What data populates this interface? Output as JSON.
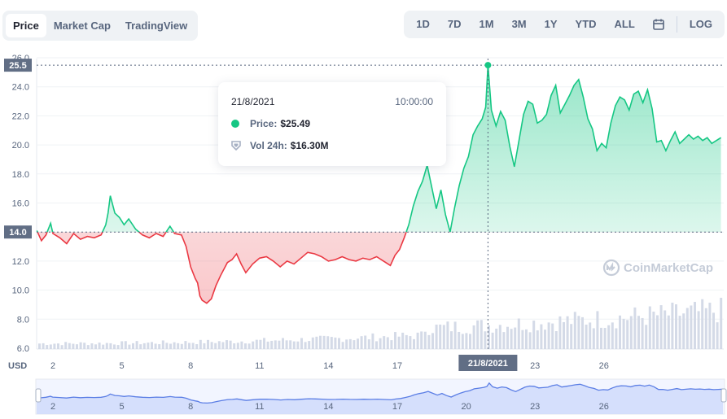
{
  "tabs": [
    {
      "label": "Price",
      "active": true
    },
    {
      "label": "Market Cap",
      "active": false
    },
    {
      "label": "TradingView",
      "active": false
    }
  ],
  "ranges": [
    "1D",
    "7D",
    "1M",
    "3M",
    "1Y",
    "YTD",
    "ALL"
  ],
  "log_label": "LOG",
  "tooltip": {
    "date": "21/8/2021",
    "time": "10:00:00",
    "price_label": "Price:",
    "price_value": "$25.49",
    "vol_label": "Vol 24h:",
    "vol_value": "$16.30M"
  },
  "watermark": "CoinMarketCap",
  "colors": {
    "up": "#16c784",
    "down": "#ea3943",
    "volume": "#cfd6e4",
    "navigator": "#5b7ee5"
  },
  "chart_data": {
    "type": "area",
    "currency_label": "USD",
    "y_ticks": [
      "26.0",
      "24.0",
      "22.0",
      "20.0",
      "18.0",
      "16.0",
      "14.0",
      "12.0",
      "10.0",
      "8.0",
      "6.0"
    ],
    "ylim": [
      6,
      26
    ],
    "x_ticks": [
      "2",
      "5",
      "8",
      "11",
      "14",
      "17",
      "20",
      "23",
      "26"
    ],
    "hover_x_label": "21/8/2021",
    "hover_y_label": "25.5",
    "baseline_label": "14.0",
    "baseline": 14.0,
    "x_unit": "day of August 2021",
    "x_range": [
      1.3,
      31.1
    ],
    "price": [
      [
        1.3,
        14.1
      ],
      [
        1.5,
        13.4
      ],
      [
        1.7,
        13.8
      ],
      [
        1.9,
        14.6
      ],
      [
        2.0,
        13.9
      ],
      [
        2.3,
        13.6
      ],
      [
        2.6,
        13.2
      ],
      [
        2.9,
        13.9
      ],
      [
        3.2,
        13.5
      ],
      [
        3.5,
        13.7
      ],
      [
        3.8,
        13.6
      ],
      [
        4.1,
        13.8
      ],
      [
        4.3,
        14.5
      ],
      [
        4.4,
        15.3
      ],
      [
        4.5,
        16.5
      ],
      [
        4.7,
        15.3
      ],
      [
        4.9,
        15.0
      ],
      [
        5.1,
        14.5
      ],
      [
        5.3,
        14.9
      ],
      [
        5.6,
        14.2
      ],
      [
        5.9,
        13.8
      ],
      [
        6.2,
        13.6
      ],
      [
        6.5,
        13.9
      ],
      [
        6.8,
        13.7
      ],
      [
        7.1,
        14.4
      ],
      [
        7.3,
        13.9
      ],
      [
        7.6,
        13.8
      ],
      [
        7.8,
        13.0
      ],
      [
        8.0,
        11.6
      ],
      [
        8.2,
        10.8
      ],
      [
        8.3,
        10.5
      ],
      [
        8.4,
        9.6
      ],
      [
        8.5,
        9.3
      ],
      [
        8.7,
        9.1
      ],
      [
        8.9,
        9.4
      ],
      [
        9.1,
        10.3
      ],
      [
        9.3,
        11.0
      ],
      [
        9.6,
        11.9
      ],
      [
        9.8,
        12.1
      ],
      [
        10.0,
        12.5
      ],
      [
        10.2,
        11.8
      ],
      [
        10.4,
        11.2
      ],
      [
        10.7,
        11.8
      ],
      [
        11.0,
        12.2
      ],
      [
        11.3,
        12.3
      ],
      [
        11.6,
        12.0
      ],
      [
        11.9,
        11.6
      ],
      [
        12.2,
        12.0
      ],
      [
        12.5,
        11.8
      ],
      [
        12.8,
        12.2
      ],
      [
        13.1,
        12.6
      ],
      [
        13.4,
        12.5
      ],
      [
        13.7,
        12.3
      ],
      [
        14.0,
        12.0
      ],
      [
        14.3,
        12.1
      ],
      [
        14.6,
        12.3
      ],
      [
        14.9,
        12.1
      ],
      [
        15.2,
        12.0
      ],
      [
        15.5,
        12.2
      ],
      [
        15.8,
        12.1
      ],
      [
        16.1,
        12.3
      ],
      [
        16.4,
        12.0
      ],
      [
        16.7,
        11.7
      ],
      [
        16.9,
        12.4
      ],
      [
        17.1,
        12.8
      ],
      [
        17.3,
        13.6
      ],
      [
        17.5,
        14.5
      ],
      [
        17.7,
        15.8
      ],
      [
        17.9,
        16.8
      ],
      [
        18.1,
        17.5
      ],
      [
        18.3,
        18.6
      ],
      [
        18.5,
        17.1
      ],
      [
        18.7,
        15.6
      ],
      [
        18.9,
        16.9
      ],
      [
        19.1,
        15.2
      ],
      [
        19.3,
        14.0
      ],
      [
        19.5,
        15.7
      ],
      [
        19.7,
        17.2
      ],
      [
        19.9,
        18.4
      ],
      [
        20.1,
        19.2
      ],
      [
        20.3,
        20.7
      ],
      [
        20.5,
        21.3
      ],
      [
        20.7,
        21.8
      ],
      [
        20.85,
        22.6
      ],
      [
        20.95,
        25.49
      ],
      [
        21.1,
        22.4
      ],
      [
        21.3,
        21.3
      ],
      [
        21.5,
        22.3
      ],
      [
        21.7,
        21.7
      ],
      [
        21.9,
        19.9
      ],
      [
        22.1,
        18.5
      ],
      [
        22.3,
        20.3
      ],
      [
        22.5,
        22.1
      ],
      [
        22.7,
        23.0
      ],
      [
        22.9,
        22.8
      ],
      [
        23.1,
        21.5
      ],
      [
        23.3,
        21.7
      ],
      [
        23.5,
        22.1
      ],
      [
        23.7,
        23.4
      ],
      [
        23.9,
        24.1
      ],
      [
        24.1,
        22.2
      ],
      [
        24.3,
        22.8
      ],
      [
        24.5,
        23.4
      ],
      [
        24.7,
        24.1
      ],
      [
        24.9,
        24.5
      ],
      [
        25.1,
        23.3
      ],
      [
        25.3,
        21.8
      ],
      [
        25.5,
        21.1
      ],
      [
        25.7,
        19.6
      ],
      [
        25.9,
        20.1
      ],
      [
        26.1,
        19.8
      ],
      [
        26.3,
        21.5
      ],
      [
        26.5,
        22.7
      ],
      [
        26.7,
        23.3
      ],
      [
        26.9,
        23.1
      ],
      [
        27.1,
        22.4
      ],
      [
        27.3,
        23.5
      ],
      [
        27.5,
        23.7
      ],
      [
        27.7,
        22.9
      ],
      [
        27.9,
        23.8
      ],
      [
        28.1,
        22.5
      ],
      [
        28.3,
        20.2
      ],
      [
        28.5,
        20.3
      ],
      [
        28.7,
        19.6
      ],
      [
        28.9,
        20.3
      ],
      [
        29.1,
        20.9
      ],
      [
        29.3,
        20.1
      ],
      [
        29.5,
        20.4
      ],
      [
        29.7,
        20.7
      ],
      [
        29.9,
        20.4
      ],
      [
        30.1,
        20.6
      ],
      [
        30.3,
        20.3
      ],
      [
        30.5,
        20.5
      ],
      [
        30.7,
        20.1
      ],
      [
        30.9,
        20.3
      ],
      [
        31.1,
        20.5
      ]
    ],
    "hover_point": {
      "x": 20.95,
      "y": 25.49
    }
  }
}
